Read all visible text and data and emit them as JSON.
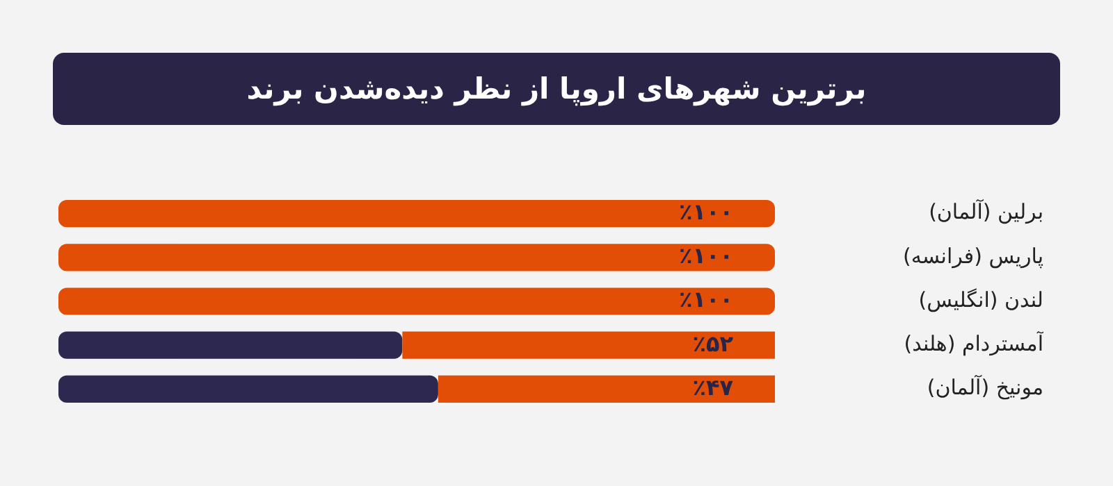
{
  "chart_data": {
    "type": "bar",
    "title": "برترین شهرهای اروپا از نظر دیده‌شدن برند",
    "orientation": "horizontal",
    "stacked": true,
    "categories": [
      "برلین (آلمان)",
      "پاریس (فرانسه)",
      "لندن (انگلیس)",
      "آمستردام (هلند)",
      "مونیخ (آلمان)"
    ],
    "series": [
      {
        "color": "#e24e05",
        "values": [
          100,
          100,
          100,
          52,
          47
        ],
        "value_labels": [
          "٪۱۰۰",
          "٪۱۰۰",
          "٪۱۰۰",
          "٪۵۲",
          "٪۴۷"
        ]
      },
      {
        "color": "#2d2850",
        "values": [
          0,
          0,
          0,
          48,
          53
        ]
      }
    ],
    "xlim": [
      100,
      0
    ],
    "tick_labels": "y",
    "grid": false,
    "legend": false
  }
}
